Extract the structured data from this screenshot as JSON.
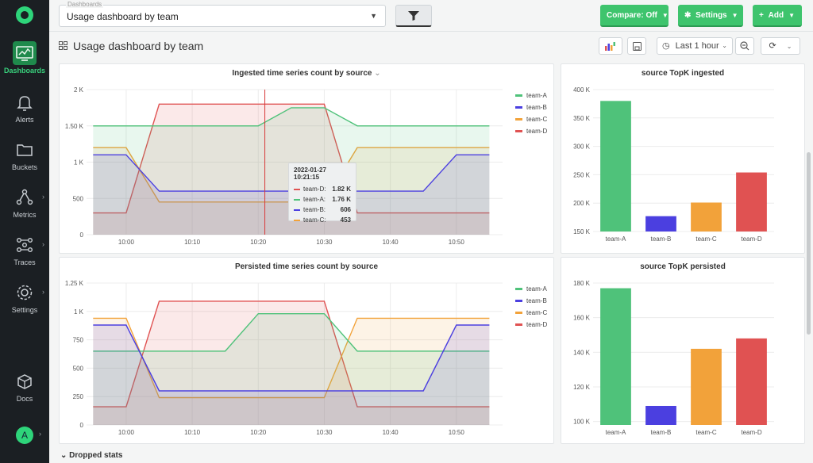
{
  "sidebar": {
    "items": [
      {
        "label": "Dashboards",
        "icon": "dashboard-icon",
        "active": true
      },
      {
        "label": "Alerts",
        "icon": "bell-icon"
      },
      {
        "label": "Buckets",
        "icon": "folder-icon"
      },
      {
        "label": "Metrics",
        "icon": "metrics-icon"
      },
      {
        "label": "Traces",
        "icon": "traces-icon"
      },
      {
        "label": "Settings",
        "icon": "gear-icon"
      },
      {
        "label": "Docs",
        "icon": "docs-icon"
      }
    ],
    "avatar": "A"
  },
  "topbar": {
    "select_legend": "Dashboards",
    "select_value": "Usage dashboard by team",
    "compare_label": "Compare: Off",
    "settings_label": "Settings",
    "add_label": "Add"
  },
  "title": {
    "text": "Usage dashboard by team",
    "time_range": "Last 1 hour"
  },
  "colors": {
    "team-A": "#4fc27a",
    "team-B": "#4b3fe0",
    "team-C": "#f2a23a",
    "team-D": "#e05252",
    "accent": "#3ec46d"
  },
  "panels": {
    "ingested_title": "Ingested time series count by source",
    "persisted_title": "Persisted time series count by source",
    "topk_ingested_title": "source TopK ingested",
    "topk_persisted_title": "source TopK persisted"
  },
  "tooltip": {
    "time": "2022-01-27 10:21:15",
    "rows": [
      {
        "series": "team-D:",
        "value": "1.82 K",
        "color": "#e05252"
      },
      {
        "series": "team-A:",
        "value": "1.76 K",
        "color": "#4fc27a"
      },
      {
        "series": "team-B:",
        "value": "606",
        "color": "#4b3fe0"
      },
      {
        "series": "team-C:",
        "value": "453",
        "color": "#f2a23a"
      }
    ]
  },
  "section": {
    "dropped_label": "Dropped stats"
  },
  "chart_data": [
    {
      "type": "area",
      "title": "Ingested time series count by source",
      "x": [
        "09:55",
        "10:00",
        "10:05",
        "10:10",
        "10:15",
        "10:20",
        "10:25",
        "10:30",
        "10:35",
        "10:40",
        "10:45",
        "10:50",
        "10:55"
      ],
      "xticks": [
        "10:00",
        "10:10",
        "10:20",
        "10:30",
        "10:40",
        "10:50"
      ],
      "yticks": [
        "0",
        "500",
        "1 K",
        "1.50 K",
        "2 K"
      ],
      "ylim": [
        0,
        2000
      ],
      "legend": "top-right",
      "series": [
        {
          "name": "team-A",
          "values": [
            1500,
            1500,
            1500,
            1500,
            1500,
            1500,
            1750,
            1750,
            1500,
            1500,
            1500,
            1500,
            1500
          ]
        },
        {
          "name": "team-B",
          "values": [
            1100,
            1100,
            600,
            600,
            600,
            600,
            600,
            600,
            600,
            600,
            600,
            1100,
            1100
          ]
        },
        {
          "name": "team-C",
          "values": [
            1200,
            1200,
            450,
            450,
            450,
            450,
            450,
            450,
            1200,
            1200,
            1200,
            1200,
            1200
          ]
        },
        {
          "name": "team-D",
          "values": [
            300,
            300,
            1800,
            1800,
            1800,
            1800,
            1800,
            1800,
            300,
            300,
            300,
            300,
            300
          ]
        }
      ]
    },
    {
      "type": "bar",
      "title": "source TopK ingested",
      "categories": [
        "team-A",
        "team-B",
        "team-C",
        "team-D"
      ],
      "values": [
        380000,
        177000,
        201000,
        254000
      ],
      "yticks": [
        "150 K",
        "200 K",
        "250 K",
        "300 K",
        "350 K",
        "400 K"
      ],
      "ylim": [
        150000,
        400000
      ]
    },
    {
      "type": "area",
      "title": "Persisted time series count by source",
      "x": [
        "09:55",
        "10:00",
        "10:05",
        "10:10",
        "10:15",
        "10:20",
        "10:25",
        "10:30",
        "10:35",
        "10:40",
        "10:45",
        "10:50",
        "10:55"
      ],
      "xticks": [
        "10:00",
        "10:10",
        "10:20",
        "10:30",
        "10:40",
        "10:50"
      ],
      "yticks": [
        "0",
        "250",
        "500",
        "750",
        "1 K",
        "1.25 K"
      ],
      "ylim": [
        0,
        1250
      ],
      "legend": "top-right",
      "series": [
        {
          "name": "team-A",
          "values": [
            650,
            650,
            650,
            650,
            650,
            980,
            980,
            980,
            650,
            650,
            650,
            650,
            650
          ]
        },
        {
          "name": "team-B",
          "values": [
            880,
            880,
            300,
            300,
            300,
            300,
            300,
            300,
            300,
            300,
            300,
            880,
            880
          ]
        },
        {
          "name": "team-C",
          "values": [
            940,
            940,
            240,
            240,
            240,
            240,
            240,
            240,
            940,
            940,
            940,
            940,
            940
          ]
        },
        {
          "name": "team-D",
          "values": [
            160,
            160,
            1090,
            1090,
            1090,
            1090,
            1090,
            1090,
            160,
            160,
            160,
            160,
            160
          ]
        }
      ]
    },
    {
      "type": "bar",
      "title": "source TopK persisted",
      "categories": [
        "team-A",
        "team-B",
        "team-C",
        "team-D"
      ],
      "values": [
        177000,
        109000,
        142000,
        148000
      ],
      "yticks": [
        "100 K",
        "120 K",
        "140 K",
        "160 K",
        "180 K"
      ],
      "ylim": [
        98000,
        180000
      ]
    }
  ]
}
